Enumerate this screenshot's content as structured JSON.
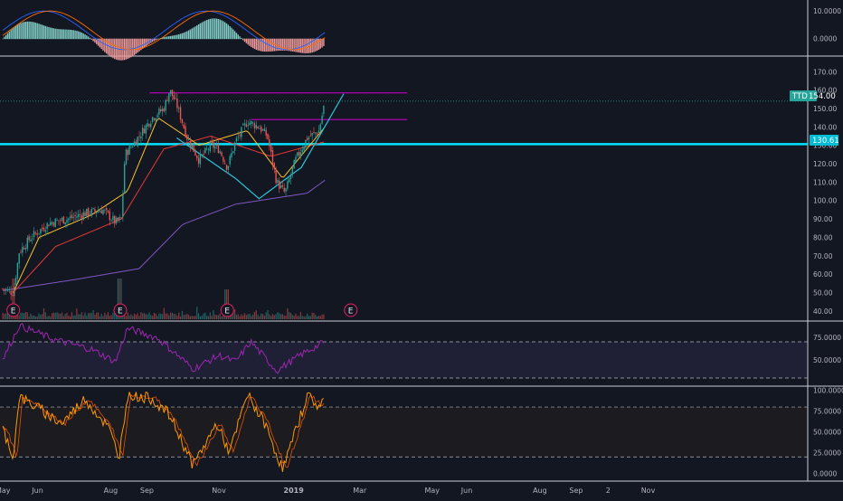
{
  "colors": {
    "background": "#131722",
    "axis_text": "#b2b5be",
    "separator": "#b2b5be",
    "candle_up": "#26a69a",
    "candle_down": "#ef5350",
    "support": "#00e5ff",
    "resistance": "#c000c0",
    "cup_curve": "#26c6da",
    "ma_long": "#7e57c2",
    "ma_mid": "#e53935",
    "ma_short": "#fbc02d",
    "rsi": "#9c27b0",
    "stoch": "#ff9800",
    "macd_line": "#2962ff",
    "macd_signal": "#ff6d00"
  },
  "markers": {
    "last_price_symbol": "TTD",
    "last_price": "154.00",
    "level_price": "130.61",
    "earnings_label": "E",
    "earnings_dates": [
      "2018-05-10",
      "2018-08-09",
      "2018-11-08",
      "2019-02-21"
    ]
  },
  "chart_data": [
    {
      "type": "bar",
      "panel": "MACD",
      "ylim": [
        -6,
        14
      ],
      "ticks": [
        "10.0000",
        "0.0000"
      ],
      "tick_values": [
        10,
        0
      ],
      "grid": false
    },
    {
      "type": "line",
      "panel": "Price",
      "symbol": "TTD",
      "ylim": [
        35,
        178
      ],
      "ticks": [
        "170.00",
        "160.00",
        "150.00",
        "140.00",
        "130.00",
        "120.00",
        "110.00",
        "100.00",
        "90.00",
        "80.00",
        "70.00",
        "60.00",
        "50.00",
        "40.00"
      ],
      "tick_values": [
        170,
        160,
        150,
        140,
        130,
        120,
        110,
        100,
        90,
        80,
        70,
        60,
        50,
        40
      ],
      "last_price": 154.0,
      "horizontal_level": 130.61,
      "price_keypoints": [
        [
          "2018-05-01",
          52
        ],
        [
          "2018-05-10",
          50
        ],
        [
          "2018-05-15",
          72
        ],
        [
          "2018-05-25",
          80
        ],
        [
          "2018-06-10",
          88
        ],
        [
          "2018-06-25",
          90
        ],
        [
          "2018-07-10",
          93
        ],
        [
          "2018-07-25",
          95
        ],
        [
          "2018-08-05",
          88
        ],
        [
          "2018-08-10",
          90
        ],
        [
          "2018-08-13",
          125
        ],
        [
          "2018-08-25",
          135
        ],
        [
          "2018-09-05",
          145
        ],
        [
          "2018-09-15",
          150
        ],
        [
          "2018-09-20",
          160
        ],
        [
          "2018-09-26",
          152
        ],
        [
          "2018-10-05",
          134
        ],
        [
          "2018-10-15",
          122
        ],
        [
          "2018-10-25",
          130
        ],
        [
          "2018-11-01",
          128
        ],
        [
          "2018-11-08",
          118
        ],
        [
          "2018-11-15",
          132
        ],
        [
          "2018-11-25",
          143
        ],
        [
          "2018-12-05",
          140
        ],
        [
          "2018-12-12",
          135
        ],
        [
          "2018-12-20",
          110
        ],
        [
          "2018-12-27",
          104
        ],
        [
          "2019-01-05",
          122
        ],
        [
          "2019-01-15",
          134
        ],
        [
          "2019-01-25",
          138
        ],
        [
          "2019-01-30",
          154
        ]
      ],
      "resistance_lines": [
        {
          "price": 158.5,
          "from": "2018-09-03",
          "to": "2019-04-10"
        },
        {
          "price": 144,
          "from": "2018-11-28",
          "to": "2019-04-10"
        }
      ],
      "cup_curve": [
        [
          "2018-09-26",
          134
        ],
        [
          "2018-11-15",
          112
        ],
        [
          "2018-12-05",
          101
        ],
        [
          "2019-01-10",
          118
        ],
        [
          "2019-02-15",
          158
        ]
      ],
      "ma_long": [
        [
          "2018-05-01",
          51
        ],
        [
          "2018-07-01",
          57
        ],
        [
          "2018-08-25",
          63
        ],
        [
          "2018-10-01",
          87
        ],
        [
          "2018-11-15",
          98
        ],
        [
          "2019-01-15",
          104
        ],
        [
          "2019-01-30",
          111
        ]
      ],
      "ma_mid": [
        [
          "2018-05-10",
          50
        ],
        [
          "2018-06-15",
          75
        ],
        [
          "2018-08-10",
          90
        ],
        [
          "2018-09-15",
          128
        ],
        [
          "2018-10-25",
          135
        ],
        [
          "2018-12-15",
          124
        ],
        [
          "2019-01-30",
          132
        ]
      ],
      "ma_short": [
        [
          "2018-05-10",
          50
        ],
        [
          "2018-06-01",
          80
        ],
        [
          "2018-07-15",
          92
        ],
        [
          "2018-08-15",
          105
        ],
        [
          "2018-09-10",
          145
        ],
        [
          "2018-10-15",
          130
        ],
        [
          "2018-11-25",
          138
        ],
        [
          "2018-12-25",
          112
        ],
        [
          "2019-01-30",
          140
        ]
      ]
    },
    {
      "type": "line",
      "panel": "RSI",
      "ylim": [
        22,
        92
      ],
      "ticks": [
        "75.0000",
        "50.0000"
      ],
      "tick_values": [
        75,
        50
      ],
      "bands": [
        70,
        30
      ],
      "values": [
        [
          "2018-05-01",
          50
        ],
        [
          "2018-05-15",
          88
        ],
        [
          "2018-06-15",
          72
        ],
        [
          "2018-07-15",
          62
        ],
        [
          "2018-08-05",
          48
        ],
        [
          "2018-08-15",
          85
        ],
        [
          "2018-09-10",
          74
        ],
        [
          "2018-10-10",
          40
        ],
        [
          "2018-11-01",
          55
        ],
        [
          "2018-11-15",
          48
        ],
        [
          "2018-11-28",
          70
        ],
        [
          "2018-12-20",
          38
        ],
        [
          "2019-01-10",
          56
        ],
        [
          "2019-01-30",
          70
        ]
      ]
    },
    {
      "type": "line",
      "panel": "Stochastic",
      "ylim": [
        -8,
        104
      ],
      "ticks": [
        "100.0000",
        "75.0000",
        "50.0000",
        "25.0000",
        "0.0000"
      ],
      "tick_values": [
        100,
        75,
        50,
        25,
        0
      ],
      "bands": [
        80,
        20
      ],
      "values": [
        [
          "2018-05-01",
          55
        ],
        [
          "2018-05-10",
          20
        ],
        [
          "2018-05-15",
          92
        ],
        [
          "2018-06-01",
          78
        ],
        [
          "2018-06-20",
          60
        ],
        [
          "2018-07-10",
          90
        ],
        [
          "2018-07-30",
          55
        ],
        [
          "2018-08-08",
          20
        ],
        [
          "2018-08-15",
          95
        ],
        [
          "2018-09-05",
          90
        ],
        [
          "2018-09-20",
          70
        ],
        [
          "2018-10-10",
          10
        ],
        [
          "2018-10-30",
          60
        ],
        [
          "2018-11-10",
          25
        ],
        [
          "2018-11-25",
          95
        ],
        [
          "2018-12-10",
          60
        ],
        [
          "2018-12-25",
          5
        ],
        [
          "2019-01-05",
          50
        ],
        [
          "2019-01-15",
          95
        ],
        [
          "2019-01-25",
          80
        ],
        [
          "2019-01-30",
          92
        ]
      ]
    }
  ],
  "x_axis": {
    "labels": [
      "May",
      "Jun",
      "Aug",
      "Sep",
      "Nov",
      "2019",
      "Mar",
      "May",
      "Jun",
      "Aug",
      "Sep",
      "2",
      "Nov"
    ],
    "label_dates": [
      "2018-05-01",
      "2018-06-01",
      "2018-08-01",
      "2018-09-01",
      "2018-11-01",
      "2019-01-01",
      "2019-03-01",
      "2019-05-01",
      "2019-06-01",
      "2019-08-01",
      "2019-09-01",
      "2019-10-02",
      "2019-11-01"
    ]
  }
}
